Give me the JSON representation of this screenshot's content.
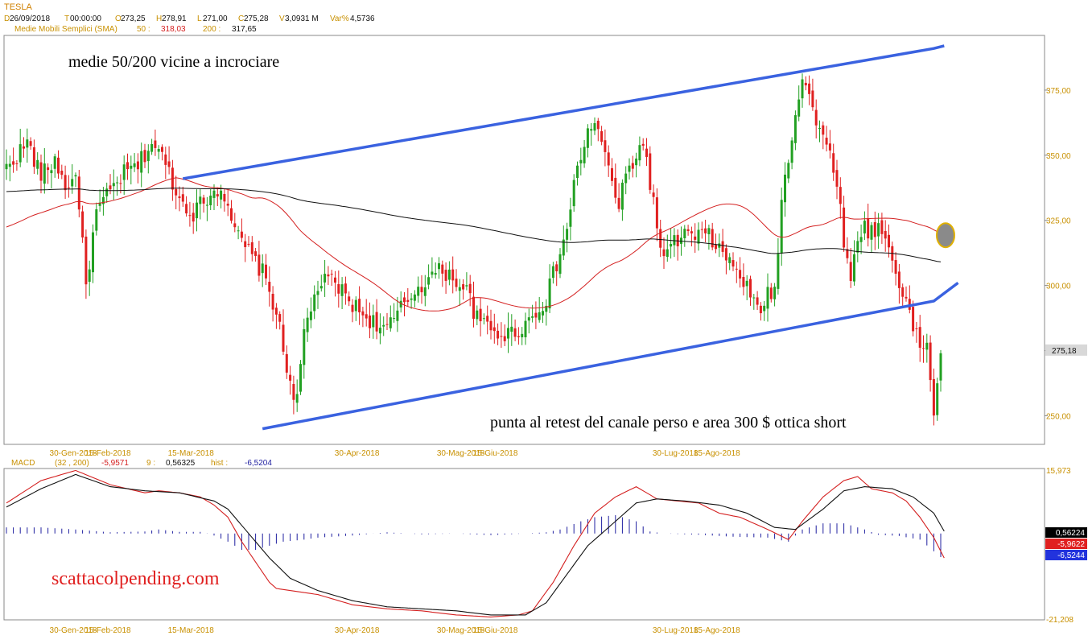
{
  "header": {
    "symbol": "TESLA",
    "ohlc_line": [
      {
        "k": "D",
        "v": "26/09/2018"
      },
      {
        "k": "T",
        "v": "00:00:00"
      },
      {
        "k": "O",
        "v": "273,25"
      },
      {
        "k": "H",
        "v": "278,91"
      },
      {
        "k": "L",
        "v": "271,00"
      },
      {
        "k": "C",
        "v": "275,28"
      },
      {
        "k": "V",
        "v": "3,0931 M"
      },
      {
        "k": "Var%",
        "v": "4,5736"
      }
    ],
    "sma_label": "Medie Mobili Semplici (SMA)",
    "sma_values": [
      {
        "k": "50 :",
        "v": "318,03"
      },
      {
        "k": "200 :",
        "v": "317,65"
      }
    ]
  },
  "annotations": {
    "top_note": "medie 50/200 vicine a incrociare",
    "bottom_note": "punta al retest del canale perso e area 300 $ ottica short",
    "watermark": "scattacolpending.com"
  },
  "colors": {
    "up": "#22a022",
    "down": "#e02020",
    "sma50": "#d42020",
    "sma200": "#111111",
    "channel": "#3a62e0",
    "axis_text": "#c89000",
    "macd_hist": "#2020a0"
  },
  "chart_data": [
    {
      "type": "candlestick",
      "title": "",
      "x_tick_labels": [
        "30-Gen-2018",
        "15-Feb-2018",
        "15-Mar-2018",
        "30-Apr-2018",
        "30-Mag-2018",
        "15-Giu-2018",
        "30-Lug-2018",
        "15-Ago-2018"
      ],
      "y_ticks": [
        250,
        275,
        300,
        325,
        350,
        375
      ],
      "y_tick_labels": [
        "250,00",
        "275,00",
        "300,00",
        "325,00",
        "350,00",
        "375,00"
      ],
      "ylim": [
        239,
        396
      ],
      "last_price_label": "275,18",
      "anchors": [
        [
          0,
          345
        ],
        [
          6,
          355
        ],
        [
          10,
          342
        ],
        [
          14,
          348
        ],
        [
          18,
          336
        ],
        [
          20,
          345
        ],
        [
          23,
          300
        ],
        [
          26,
          328
        ],
        [
          30,
          336
        ],
        [
          34,
          343
        ],
        [
          38,
          346
        ],
        [
          42,
          355
        ],
        [
          46,
          347
        ],
        [
          50,
          333
        ],
        [
          54,
          328
        ],
        [
          58,
          334
        ],
        [
          62,
          338
        ],
        [
          64,
          332
        ],
        [
          66,
          320
        ],
        [
          70,
          313
        ],
        [
          74,
          305
        ],
        [
          78,
          290
        ],
        [
          81,
          268
        ],
        [
          84,
          255
        ],
        [
          86,
          282
        ],
        [
          90,
          300
        ],
        [
          94,
          302
        ],
        [
          98,
          296
        ],
        [
          102,
          290
        ],
        [
          106,
          286
        ],
        [
          110,
          283
        ],
        [
          114,
          291
        ],
        [
          118,
          298
        ],
        [
          122,
          303
        ],
        [
          126,
          306
        ],
        [
          130,
          302
        ],
        [
          133,
          298
        ],
        [
          136,
          287
        ],
        [
          140,
          283
        ],
        [
          144,
          281
        ],
        [
          148,
          283
        ],
        [
          152,
          288
        ],
        [
          156,
          295
        ],
        [
          158,
          304
        ],
        [
          160,
          312
        ],
        [
          162,
          322
        ],
        [
          164,
          338
        ],
        [
          166,
          350
        ],
        [
          168,
          358
        ],
        [
          170,
          364
        ],
        [
          172,
          354
        ],
        [
          175,
          340
        ],
        [
          177,
          330
        ],
        [
          179,
          342
        ],
        [
          182,
          350
        ],
        [
          184,
          355
        ],
        [
          186,
          340
        ],
        [
          188,
          322
        ],
        [
          190,
          310
        ],
        [
          193,
          316
        ],
        [
          196,
          320
        ],
        [
          199,
          318
        ],
        [
          202,
          320
        ],
        [
          205,
          316
        ],
        [
          208,
          310
        ],
        [
          211,
          306
        ],
        [
          214,
          299
        ],
        [
          217,
          290
        ],
        [
          220,
          296
        ],
        [
          222,
          298
        ],
        [
          224,
          332
        ],
        [
          226,
          350
        ],
        [
          228,
          366
        ],
        [
          230,
          381
        ],
        [
          232,
          374
        ],
        [
          234,
          362
        ],
        [
          236,
          356
        ],
        [
          238,
          352
        ],
        [
          240,
          340
        ],
        [
          242,
          318
        ],
        [
          244,
          300
        ],
        [
          246,
          320
        ],
        [
          248,
          322
        ],
        [
          250,
          321
        ],
        [
          252,
          322
        ],
        [
          254,
          318
        ],
        [
          256,
          310
        ],
        [
          258,
          300
        ],
        [
          260,
          297
        ],
        [
          262,
          282
        ],
        [
          264,
          278
        ],
        [
          266,
          276
        ],
        [
          268,
          252
        ],
        [
          270,
          275
        ]
      ],
      "highlight_point_date_index": 270,
      "channel_upper": [
        [
          51,
          341
        ],
        [
          268,
          391
        ],
        [
          271,
          392
        ]
      ],
      "channel_lower": [
        [
          74,
          245
        ],
        [
          268,
          294
        ],
        [
          275,
          301
        ]
      ]
    },
    {
      "type": "line",
      "title": "MACD",
      "params": "(32 , 200)",
      "legend": [
        {
          "k": "",
          "v": "-5,9571"
        },
        {
          "k": "9 :",
          "v": "0,56325"
        },
        {
          "k": "hist :",
          "v": "-6,5204"
        }
      ],
      "ylim": [
        -21.208,
        15.973
      ],
      "y_tick_labels": [
        "15,973",
        "-21,208"
      ],
      "value_boxes": [
        {
          "label": "0,56224",
          "value": 0.56224,
          "bg": "#000000"
        },
        {
          "label": "-5,9622",
          "value": -5.9622,
          "bg": "#e02020"
        },
        {
          "label": "-6,5244",
          "value": -6.5244,
          "bg": "#2233dd"
        }
      ],
      "macd_line": [
        [
          0,
          7.5
        ],
        [
          10,
          13
        ],
        [
          20,
          15.5
        ],
        [
          30,
          12
        ],
        [
          40,
          10
        ],
        [
          44,
          10.5
        ],
        [
          50,
          10
        ],
        [
          56,
          9
        ],
        [
          60,
          7
        ],
        [
          64,
          4
        ],
        [
          68,
          -2
        ],
        [
          72,
          -7
        ],
        [
          76,
          -12
        ],
        [
          78,
          -13.5
        ],
        [
          82,
          -14
        ],
        [
          86,
          -14.5
        ],
        [
          90,
          -15
        ],
        [
          100,
          -17.5
        ],
        [
          110,
          -18.5
        ],
        [
          120,
          -19
        ],
        [
          130,
          -20
        ],
        [
          140,
          -20.5
        ],
        [
          148,
          -20
        ],
        [
          152,
          -19
        ],
        [
          158,
          -12
        ],
        [
          164,
          -3
        ],
        [
          170,
          5
        ],
        [
          176,
          9
        ],
        [
          182,
          11.5
        ],
        [
          188,
          8.5
        ],
        [
          194,
          8
        ],
        [
          200,
          7.5
        ],
        [
          206,
          5
        ],
        [
          212,
          4
        ],
        [
          220,
          1
        ],
        [
          226,
          -1.5
        ],
        [
          230,
          3
        ],
        [
          236,
          9
        ],
        [
          242,
          13
        ],
        [
          246,
          14
        ],
        [
          250,
          11
        ],
        [
          256,
          10
        ],
        [
          260,
          8
        ],
        [
          264,
          4
        ],
        [
          268,
          -1
        ],
        [
          271,
          -6
        ]
      ],
      "signal_line": [
        [
          0,
          6.5
        ],
        [
          10,
          11
        ],
        [
          20,
          14.5
        ],
        [
          30,
          11.5
        ],
        [
          40,
          10.5
        ],
        [
          50,
          10
        ],
        [
          60,
          8
        ],
        [
          64,
          6
        ],
        [
          70,
          0
        ],
        [
          76,
          -6
        ],
        [
          82,
          -11
        ],
        [
          90,
          -14
        ],
        [
          100,
          -16.5
        ],
        [
          110,
          -18
        ],
        [
          120,
          -18.5
        ],
        [
          130,
          -19
        ],
        [
          140,
          -20
        ],
        [
          150,
          -20
        ],
        [
          156,
          -17
        ],
        [
          162,
          -10
        ],
        [
          168,
          -3
        ],
        [
          176,
          3
        ],
        [
          182,
          7.5
        ],
        [
          188,
          8.5
        ],
        [
          196,
          8
        ],
        [
          206,
          7
        ],
        [
          214,
          5
        ],
        [
          222,
          1.5
        ],
        [
          228,
          1
        ],
        [
          236,
          6
        ],
        [
          242,
          10.5
        ],
        [
          248,
          11.5
        ],
        [
          256,
          11
        ],
        [
          262,
          9
        ],
        [
          268,
          5
        ],
        [
          271,
          0.56
        ]
      ],
      "hist": [
        [
          0,
          1.5
        ],
        [
          10,
          1.5
        ],
        [
          20,
          1
        ],
        [
          30,
          0.3
        ],
        [
          40,
          0.5
        ],
        [
          44,
          1
        ],
        [
          50,
          0.4
        ],
        [
          56,
          0.4
        ],
        [
          60,
          -0.5
        ],
        [
          64,
          -2
        ],
        [
          68,
          -4
        ],
        [
          72,
          -4
        ],
        [
          76,
          -3
        ],
        [
          80,
          -2
        ],
        [
          86,
          -1.5
        ],
        [
          90,
          -1
        ],
        [
          100,
          -0.5
        ],
        [
          110,
          0.3
        ],
        [
          120,
          -0.2
        ],
        [
          130,
          0
        ],
        [
          140,
          -0.4
        ],
        [
          150,
          0
        ],
        [
          156,
          0.3
        ],
        [
          160,
          1
        ],
        [
          166,
          3
        ],
        [
          170,
          4
        ],
        [
          176,
          4.5
        ],
        [
          182,
          3
        ],
        [
          186,
          0.5
        ],
        [
          190,
          0
        ],
        [
          200,
          -0.3
        ],
        [
          210,
          -0.8
        ],
        [
          220,
          -1
        ],
        [
          226,
          -2
        ],
        [
          230,
          1
        ],
        [
          236,
          2.5
        ],
        [
          242,
          2.5
        ],
        [
          248,
          1
        ],
        [
          252,
          -0.3
        ],
        [
          258,
          -0.6
        ],
        [
          264,
          -1.5
        ],
        [
          271,
          -6.5
        ]
      ]
    }
  ]
}
